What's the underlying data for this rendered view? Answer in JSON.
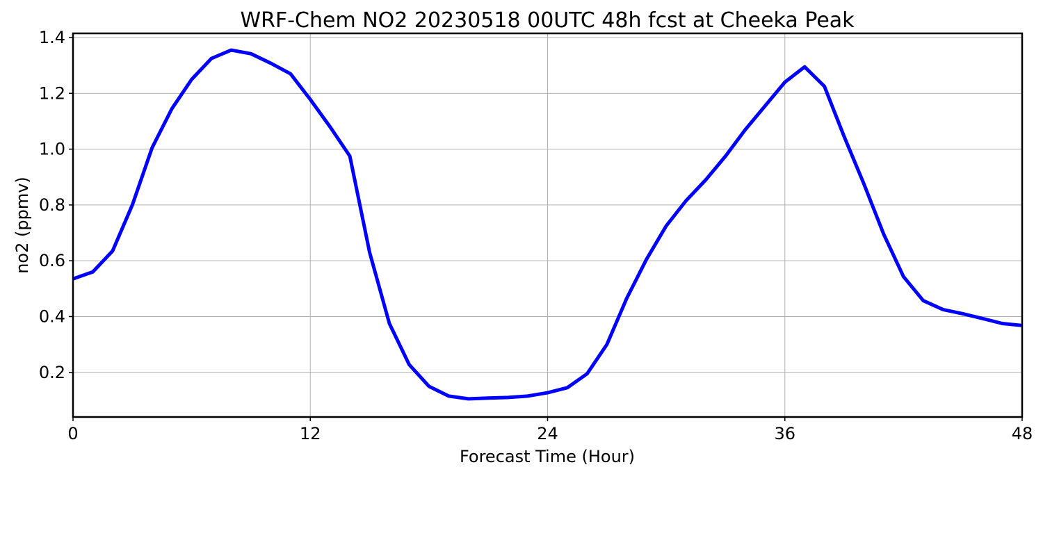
{
  "chart_data": {
    "type": "line",
    "title": "WRF-Chem NO2  20230518 00UTC 48h fcst at Cheeka Peak",
    "xlabel": "Forecast Time (Hour)",
    "ylabel": "no2  (ppmv)",
    "xlim": [
      0,
      48
    ],
    "ylim": [
      0.04,
      1.415
    ],
    "x_ticks": [
      0,
      12,
      24,
      36,
      48
    ],
    "x_tick_labels": [
      "0",
      "12",
      "24",
      "36",
      "48"
    ],
    "y_ticks": [
      0.2,
      0.4,
      0.6,
      0.8,
      1.0,
      1.2,
      1.4
    ],
    "y_tick_labels": [
      "0.2",
      "0.4",
      "0.6",
      "0.8",
      "1.0",
      "1.2",
      "1.4"
    ],
    "grid": true,
    "line_color": "#0000ff",
    "x": [
      0,
      1,
      2,
      3,
      4,
      5,
      6,
      7,
      8,
      9,
      10,
      11,
      12,
      13,
      14,
      15,
      16,
      17,
      18,
      19,
      20,
      21,
      22,
      23,
      24,
      25,
      26,
      27,
      28,
      29,
      30,
      31,
      32,
      33,
      34,
      35,
      36,
      37,
      38,
      39,
      40,
      41,
      42,
      43,
      44,
      45,
      46,
      47,
      48
    ],
    "series": [
      {
        "values": [
          0.535,
          0.56,
          0.635,
          0.8,
          1.005,
          1.145,
          1.25,
          1.325,
          1.355,
          1.342,
          1.308,
          1.27,
          1.178,
          1.08,
          0.975,
          0.63,
          0.375,
          0.228,
          0.15,
          0.115,
          0.105,
          0.108,
          0.11,
          0.115,
          0.127,
          0.145,
          0.195,
          0.3,
          0.465,
          0.605,
          0.725,
          0.815,
          0.89,
          0.975,
          1.07,
          1.155,
          1.24,
          1.295,
          1.225,
          1.045,
          0.875,
          0.695,
          0.543,
          0.457,
          0.425,
          0.41,
          0.393,
          0.375,
          0.368
        ]
      }
    ]
  }
}
